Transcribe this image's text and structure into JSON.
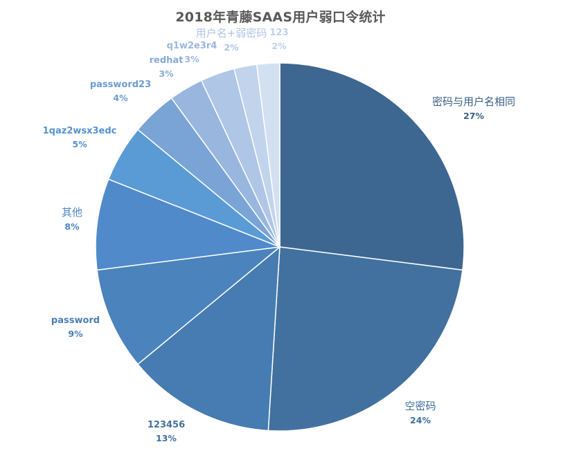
{
  "chart_data": {
    "type": "pie",
    "title": "2018年青藤SAAS用户弱口令统计",
    "start_angle_deg": 0,
    "direction": "clockwise",
    "legend": "none",
    "slices": [
      {
        "label": "密码与用户名相同",
        "pct_label": "27%",
        "value": 27,
        "color": "#3d6791",
        "label_color": "#3a5f86"
      },
      {
        "label": "空密码",
        "pct_label": "24%",
        "value": 24,
        "color": "#42719f",
        "label_color": "#3f6c98"
      },
      {
        "label": "123456",
        "pct_label": "13%",
        "value": 13,
        "color": "#467cb1",
        "label_color": "#44709c"
      },
      {
        "label": "password",
        "pct_label": "9%",
        "value": 9,
        "color": "#4b83bd",
        "label_color": "#4a7db5"
      },
      {
        "label": "其他",
        "pct_label": "8%",
        "value": 8,
        "color": "#508acb",
        "label_color": "#4d86c3"
      },
      {
        "label": "1qaz2wsx3edc",
        "pct_label": "5%",
        "value": 5,
        "color": "#5a9bd6",
        "label_color": "#5492cf"
      },
      {
        "label": "password23",
        "pct_label": "4%",
        "value": 4,
        "color": "#7ba4d6",
        "label_color": "#6d9bd2"
      },
      {
        "label": "redhat",
        "pct_label": "3%",
        "value": 3,
        "color": "#98b6de",
        "label_color": "#86a9d8"
      },
      {
        "label": "q1w2e3r4",
        "pct_label": "3%",
        "value": 3,
        "color": "#afc6e6",
        "label_color": "#9ab7df"
      },
      {
        "label": "用户名+弱密码",
        "pct_label": "2%",
        "value": 2,
        "color": "#c2d3ec",
        "label_color": "#aec4e5"
      },
      {
        "label": "123",
        "pct_label": "2%",
        "value": 2,
        "color": "#d3e0f2",
        "label_color": "#bfd0eb"
      }
    ]
  }
}
